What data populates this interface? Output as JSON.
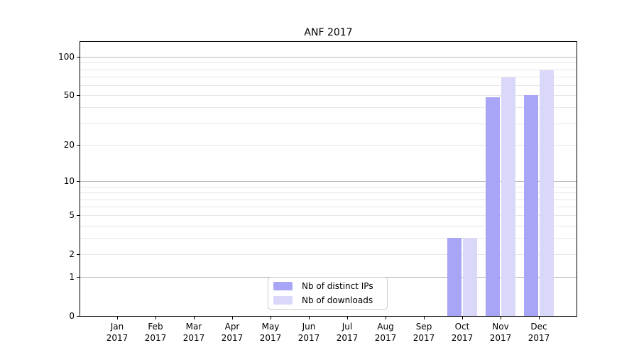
{
  "chart_data": {
    "type": "bar",
    "title": "ANF 2017",
    "categories": [
      "Jan 2017",
      "Feb 2017",
      "Mar 2017",
      "Apr 2017",
      "May 2017",
      "Jun 2017",
      "Jul 2017",
      "Aug 2017",
      "Sep 2017",
      "Oct 2017",
      "Nov 2017",
      "Dec 2017"
    ],
    "x": {
      "months": [
        "Jan",
        "Feb",
        "Mar",
        "Apr",
        "May",
        "Jun",
        "Jul",
        "Aug",
        "Sep",
        "Oct",
        "Nov",
        "Dec"
      ],
      "year_label": "2017"
    },
    "series": [
      {
        "name": "Nb of distinct IPs",
        "color": "#a8a5f6",
        "values": [
          0,
          0,
          0,
          0,
          0,
          0,
          0,
          0,
          0,
          3,
          48,
          50
        ]
      },
      {
        "name": "Nb of downloads",
        "color": "#dad8f9",
        "values": [
          0,
          0,
          0,
          0,
          0,
          0,
          0,
          0,
          0,
          3,
          69,
          79
        ]
      }
    ],
    "y_axis": {
      "scale": "log10(1+value)",
      "tick_values": [
        0,
        1,
        2,
        5,
        10,
        20,
        50,
        100
      ],
      "tick_labels": [
        "0",
        "1",
        "2",
        "5",
        "10",
        "20",
        "50",
        "100"
      ],
      "ylim": [
        0,
        131
      ],
      "grid_major": [
        1,
        10,
        100
      ],
      "grid_minor": [
        2,
        3,
        4,
        5,
        6,
        7,
        8,
        9,
        20,
        30,
        40,
        50,
        60,
        70,
        80,
        90
      ]
    },
    "legend": {
      "items": [
        "Nb of distinct IPs",
        "Nb of downloads"
      ],
      "position": "lower-center-inside"
    },
    "grid": "horizontal-only"
  },
  "colors": {
    "background": "#ffffff",
    "spine": "#000000",
    "grid_major": "#b6b6b6",
    "grid_minor": "#e7e7e7",
    "text": "#000000",
    "legend_border": "#cccccc",
    "legend_bg": "#ffffff"
  }
}
